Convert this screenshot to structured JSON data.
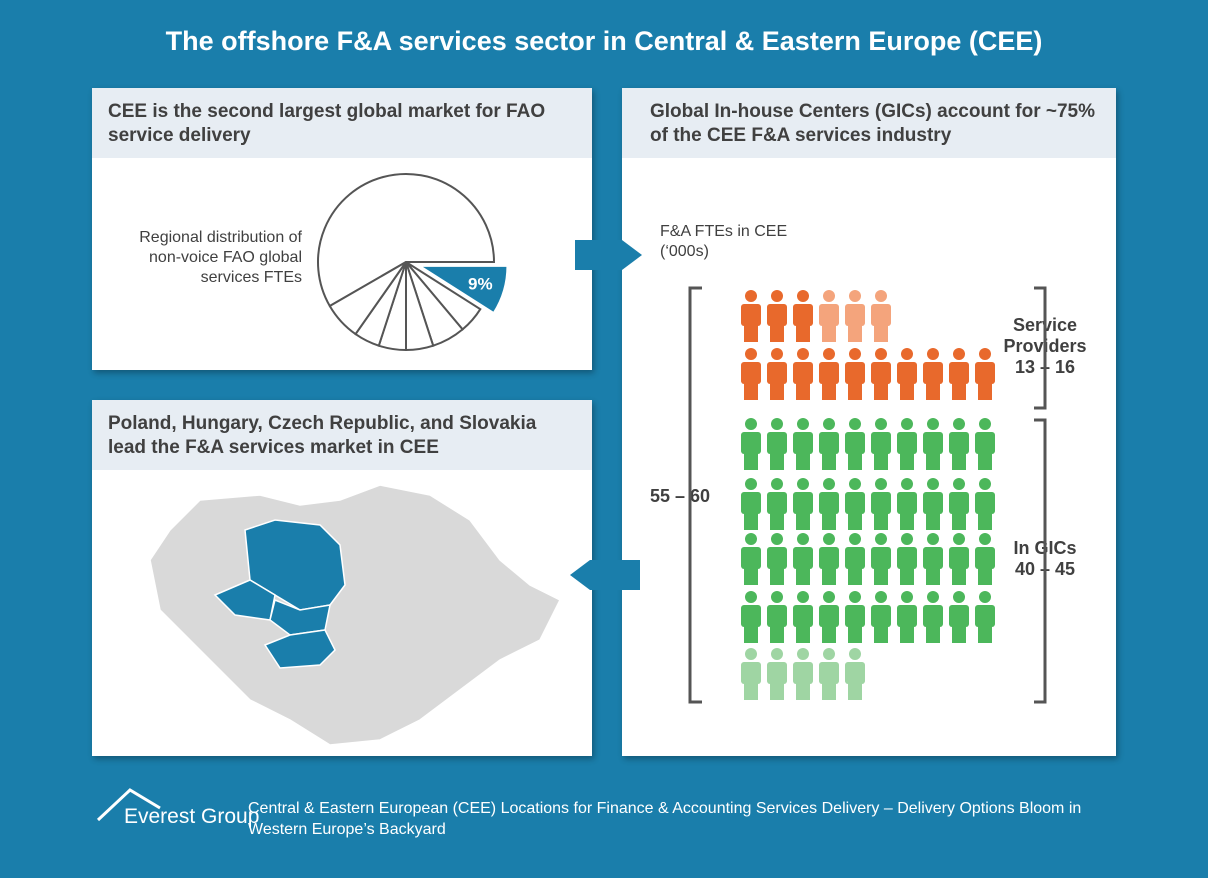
{
  "title": "The offshore F&A services sector in Central & Eastern Europe (CEE)",
  "panels": [
    {
      "heading": "CEE is the second largest global market for FAO service delivery",
      "pie_label": "Regional distribution of non-voice FAO global services FTEs",
      "slice_value": 9,
      "slice_label": "9%"
    },
    {
      "heading": "Poland, Hungary, Czech Republic, and Slovakia lead the F&A services market in CEE"
    },
    {
      "heading": "Global In-house Centers (GICs) account for ~75% of the CEE F&A services industry",
      "subtitle": "F&A FTEs in CEE (‘000s)",
      "total": "55 – 60",
      "service_providers_label": "Service Providers",
      "service_providers_range": "13 – 16",
      "gics_label": "In GICs",
      "gics_range": "40 – 45"
    }
  ],
  "footer": {
    "brand": "Everest Group",
    "caption": "Central & Eastern European (CEE) Locations for Finance & Accounting Services Delivery – Delivery Options Bloom in Western Europe’s Backyard"
  }
}
